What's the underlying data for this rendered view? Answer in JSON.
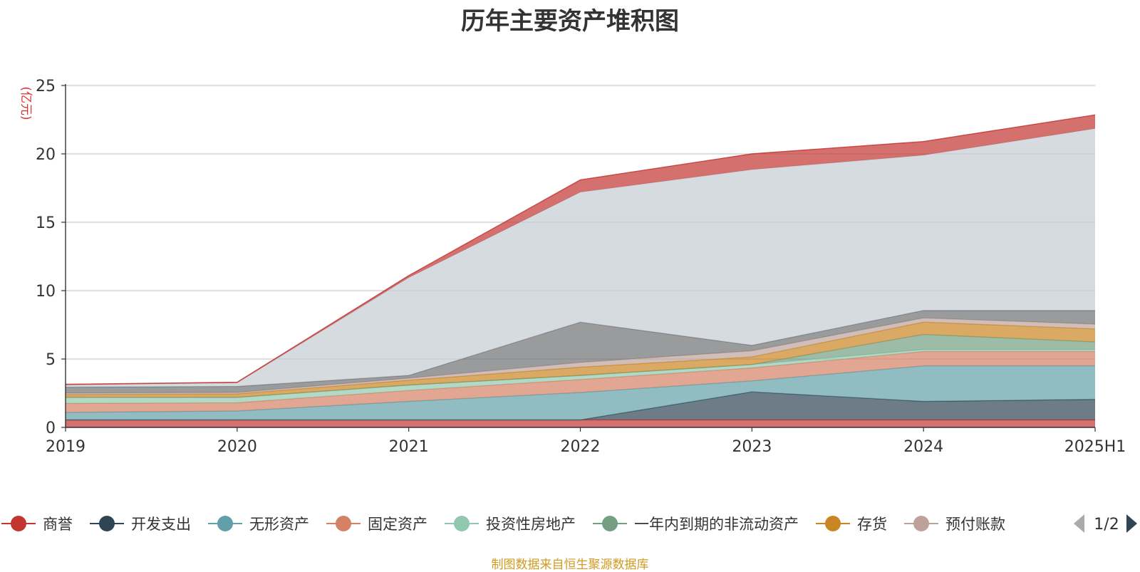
{
  "chart_data": {
    "type": "area",
    "title": "历年主要资产堆积图",
    "ylabel": "(亿元)",
    "x": [
      "2019",
      "2020",
      "2021",
      "2022",
      "2023",
      "2024",
      "2025H1"
    ],
    "yticks": [
      "0",
      "5",
      "10",
      "15",
      "20",
      "25"
    ],
    "ylim": [
      0,
      25
    ],
    "grid": true,
    "stacked": true,
    "legend_position": "bottom",
    "legend_page": "1/2",
    "series": [
      {
        "name": "商誉",
        "color": "#c23531",
        "values": [
          0.55,
          0.55,
          0.55,
          0.55,
          0.55,
          0.55,
          0.55
        ]
      },
      {
        "name": "开发支出",
        "color": "#2f4554",
        "values": [
          0,
          0,
          0,
          0,
          2.05,
          1.35,
          1.5
        ]
      },
      {
        "name": "无形资产",
        "color": "#61a0a8",
        "values": [
          0.55,
          0.65,
          1.35,
          2.0,
          0.8,
          2.6,
          2.45
        ]
      },
      {
        "name": "固定资产",
        "color": "#d48265",
        "values": [
          0.65,
          0.6,
          0.8,
          0.95,
          0.95,
          1.05,
          1.05
        ]
      },
      {
        "name": "投资性房地产",
        "color": "#91c7ae",
        "values": [
          0.45,
          0.4,
          0.4,
          0.3,
          0.25,
          0.15,
          0.15
        ]
      },
      {
        "name": "一年内到期的非流动资产",
        "color": "#749f83",
        "values": [
          0,
          0,
          0,
          0,
          0,
          1.1,
          0.55
        ]
      },
      {
        "name": "存货",
        "color": "#ca8622",
        "values": [
          0.2,
          0.25,
          0.35,
          0.6,
          0.55,
          0.9,
          0.95
        ]
      },
      {
        "name": "预付账款",
        "color": "#bda29a",
        "values": [
          0.1,
          0.1,
          0.15,
          0.35,
          0.45,
          0.3,
          0.35
        ]
      },
      {
        "name": "",
        "color": "#6e7074",
        "values": [
          0.45,
          0.45,
          0.2,
          2.95,
          0.4,
          0.55,
          1.0
        ]
      },
      {
        "name": "",
        "color": "#c4ccd3",
        "values": [
          0.15,
          0.25,
          7.15,
          9.5,
          12.85,
          11.35,
          13.3
        ]
      },
      {
        "name": "",
        "color": "#c23531",
        "values": [
          0.05,
          0.05,
          0.15,
          0.9,
          1.15,
          1.0,
          1.0
        ]
      }
    ],
    "source_note": "制图数据来自恒生聚源数据库"
  },
  "colors": {
    "title": "#333333",
    "axis_text": "#333333",
    "unit_label": "#e03030",
    "grid": "#cccccc",
    "source": "#d19a21",
    "pager_active": "#2f4554",
    "pager_inactive": "#aaaaaa"
  }
}
